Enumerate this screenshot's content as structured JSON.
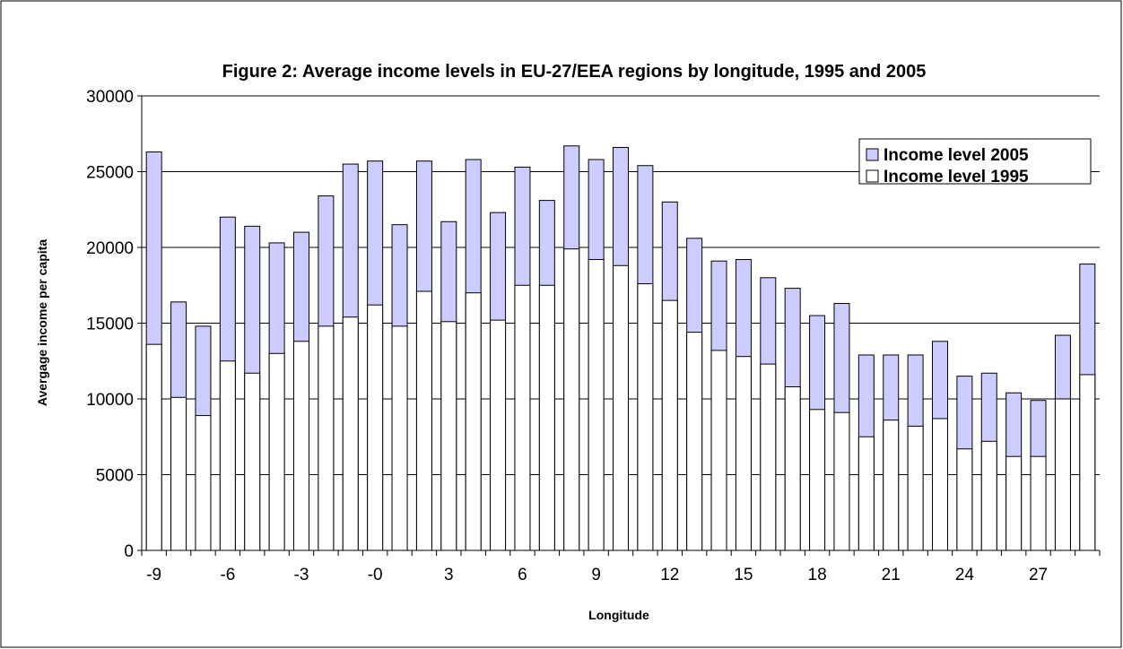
{
  "chart_data": {
    "type": "bar",
    "title": "Figure 2: Average income levels in EU-27/EEA regions by longitude, 1995 and 2005",
    "x_label": "Longitude",
    "y_label": "Avergage income per capita",
    "categories": [
      "-9",
      null,
      null,
      "-6",
      null,
      null,
      "-3",
      null,
      null,
      "-0",
      null,
      null,
      "3",
      null,
      null,
      "6",
      null,
      null,
      "9",
      null,
      null,
      "12",
      null,
      null,
      "15",
      null,
      null,
      "18",
      null,
      null,
      "21",
      null,
      null,
      "24",
      null,
      null,
      "27",
      null,
      null
    ],
    "series": [
      {
        "name": "Income level 2005",
        "color": "#ccccff",
        "values": [
          26300,
          16400,
          14800,
          22000,
          21400,
          20300,
          21000,
          23400,
          25500,
          25700,
          21500,
          25700,
          21700,
          25800,
          22300,
          25300,
          23100,
          26700,
          25800,
          26600,
          25400,
          23000,
          20600,
          19100,
          19200,
          18000,
          17300,
          15500,
          16300,
          12900,
          12900,
          12900,
          13800,
          11500,
          11700,
          10400,
          9900,
          14200,
          18900
        ]
      },
      {
        "name": "Income level 1995",
        "color": "#ffffff",
        "values": [
          13600,
          10100,
          8900,
          12500,
          11700,
          13000,
          13800,
          14800,
          15400,
          16200,
          14800,
          17100,
          15100,
          17000,
          15200,
          17500,
          17500,
          19900,
          19200,
          18800,
          17600,
          16500,
          14400,
          13200,
          12800,
          12300,
          10800,
          9300,
          9100,
          7500,
          8600,
          8200,
          8700,
          6700,
          7200,
          6200,
          6200,
          10000,
          11600
        ]
      }
    ],
    "ylim": [
      0,
      30000
    ],
    "yticks": [
      0,
      5000,
      10000,
      15000,
      20000,
      25000,
      30000
    ],
    "grid": true,
    "legend": "top-right",
    "overlap": true
  }
}
